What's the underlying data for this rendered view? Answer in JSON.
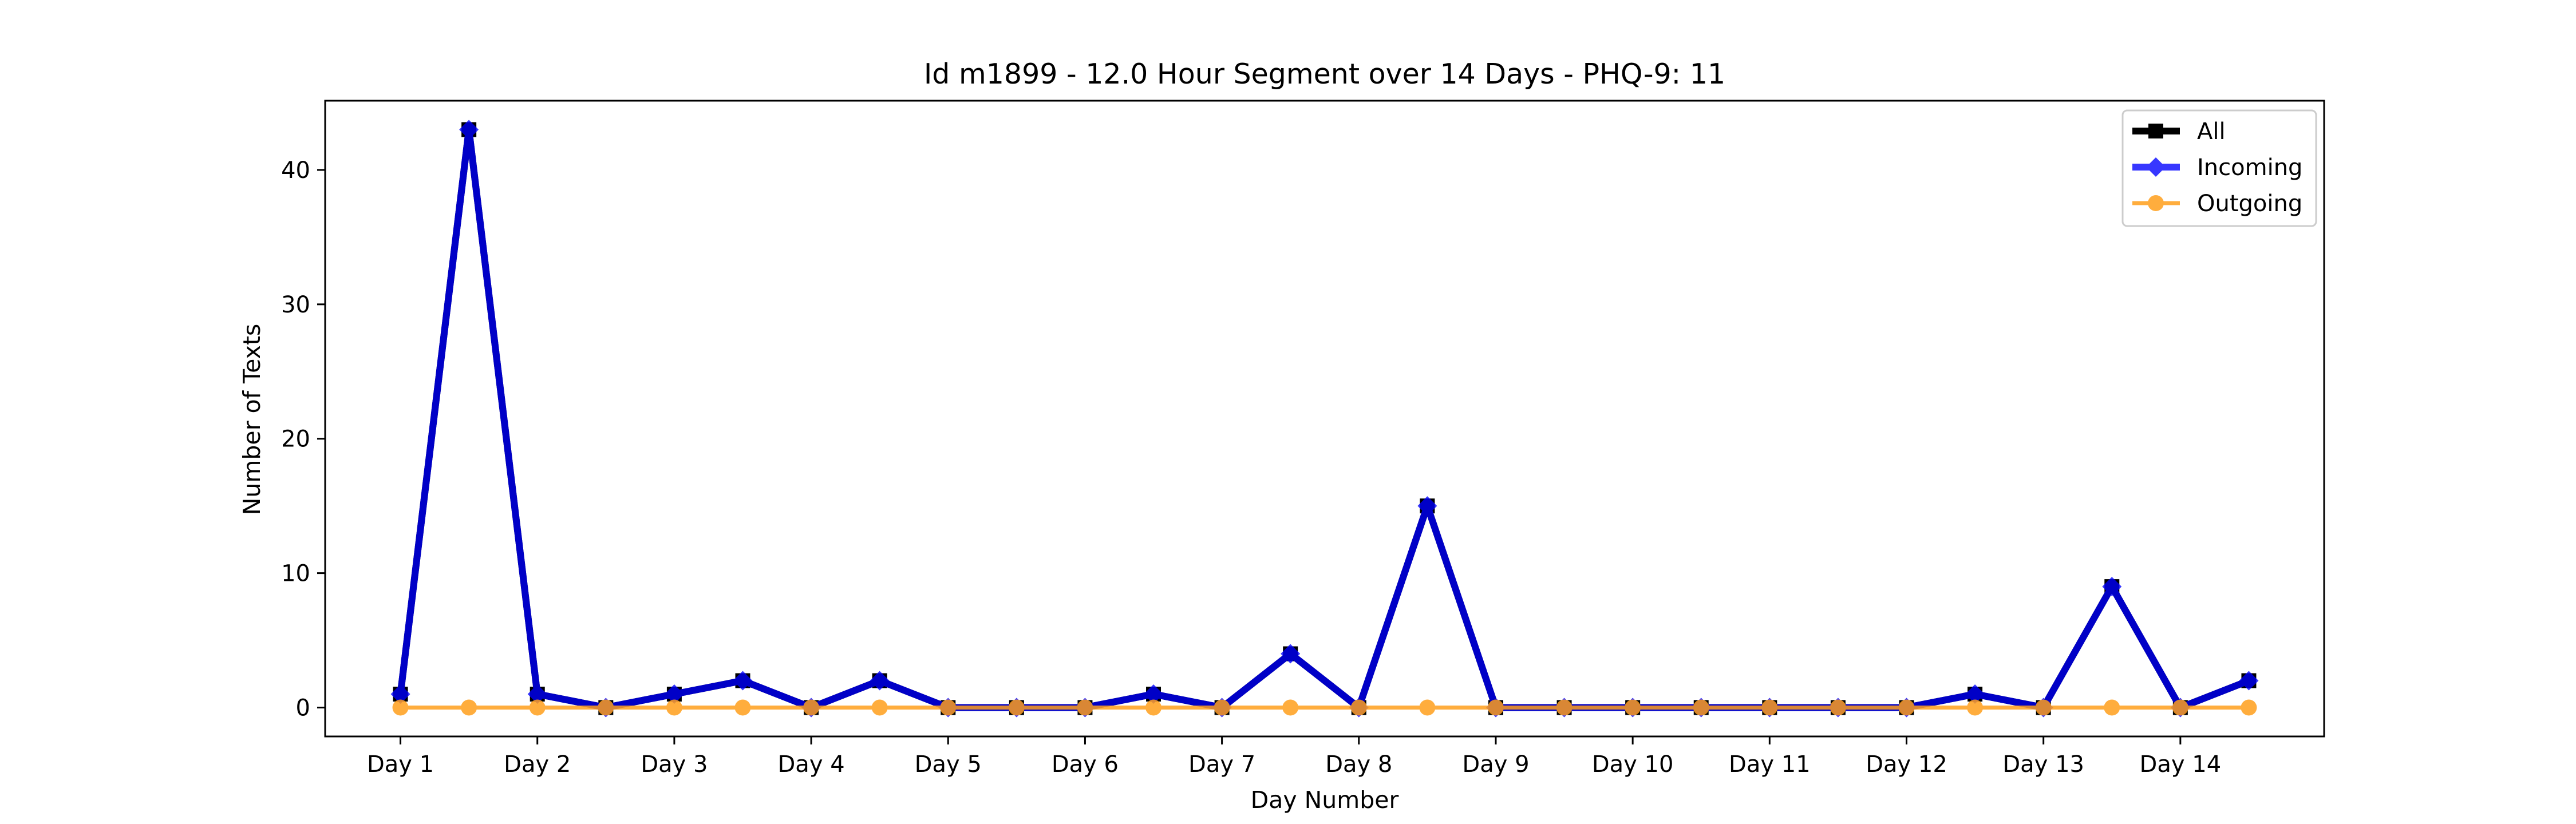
{
  "chart_data": {
    "type": "line",
    "title": "Id m1899 - 12.0 Hour Segment over 14 Days - PHQ-9: 11",
    "xlabel": "Day Number",
    "ylabel": "Number of Texts",
    "x": [
      1,
      1.5,
      2,
      2.5,
      3,
      3.5,
      4,
      4.5,
      5,
      5.5,
      6,
      6.5,
      7,
      7.5,
      8,
      8.5,
      9,
      9.5,
      10,
      10.5,
      11,
      11.5,
      12,
      12.5,
      13,
      13.5,
      14,
      14.5
    ],
    "xticks": [
      1,
      2,
      3,
      4,
      5,
      6,
      7,
      8,
      9,
      10,
      11,
      12,
      13,
      14
    ],
    "xtick_labels": [
      "Day 1",
      "Day 2",
      "Day 3",
      "Day 4",
      "Day 5",
      "Day 6",
      "Day 7",
      "Day 8",
      "Day 9",
      "Day 10",
      "Day 11",
      "Day 12",
      "Day 13",
      "Day 14"
    ],
    "xlim": [
      0.45,
      15.05
    ],
    "yticks": [
      0,
      10,
      20,
      30,
      40
    ],
    "ylim": [
      -2.15,
      45.15
    ],
    "grid": false,
    "legend_position": "top-right",
    "series": [
      {
        "name": "All",
        "color": "#000000",
        "marker": "square",
        "values": [
          1,
          43,
          1,
          0,
          1,
          2,
          0,
          2,
          0,
          0,
          0,
          1,
          0,
          4,
          0,
          15,
          0,
          0,
          0,
          0,
          0,
          0,
          0,
          1,
          0,
          9,
          0,
          2
        ]
      },
      {
        "name": "Incoming",
        "color": "#0000ff",
        "marker": "diamond",
        "values": [
          1,
          43,
          1,
          0,
          1,
          2,
          0,
          2,
          0,
          0,
          0,
          1,
          0,
          4,
          0,
          15,
          0,
          0,
          0,
          0,
          0,
          0,
          0,
          1,
          0,
          9,
          0,
          2
        ]
      },
      {
        "name": "Outgoing",
        "color": "#ff9f1c",
        "marker": "circle",
        "values": [
          0,
          0,
          0,
          0,
          0,
          0,
          0,
          0,
          0,
          0,
          0,
          0,
          0,
          0,
          0,
          0,
          0,
          0,
          0,
          0,
          0,
          0,
          0,
          0,
          0,
          0,
          0,
          0
        ]
      }
    ]
  }
}
